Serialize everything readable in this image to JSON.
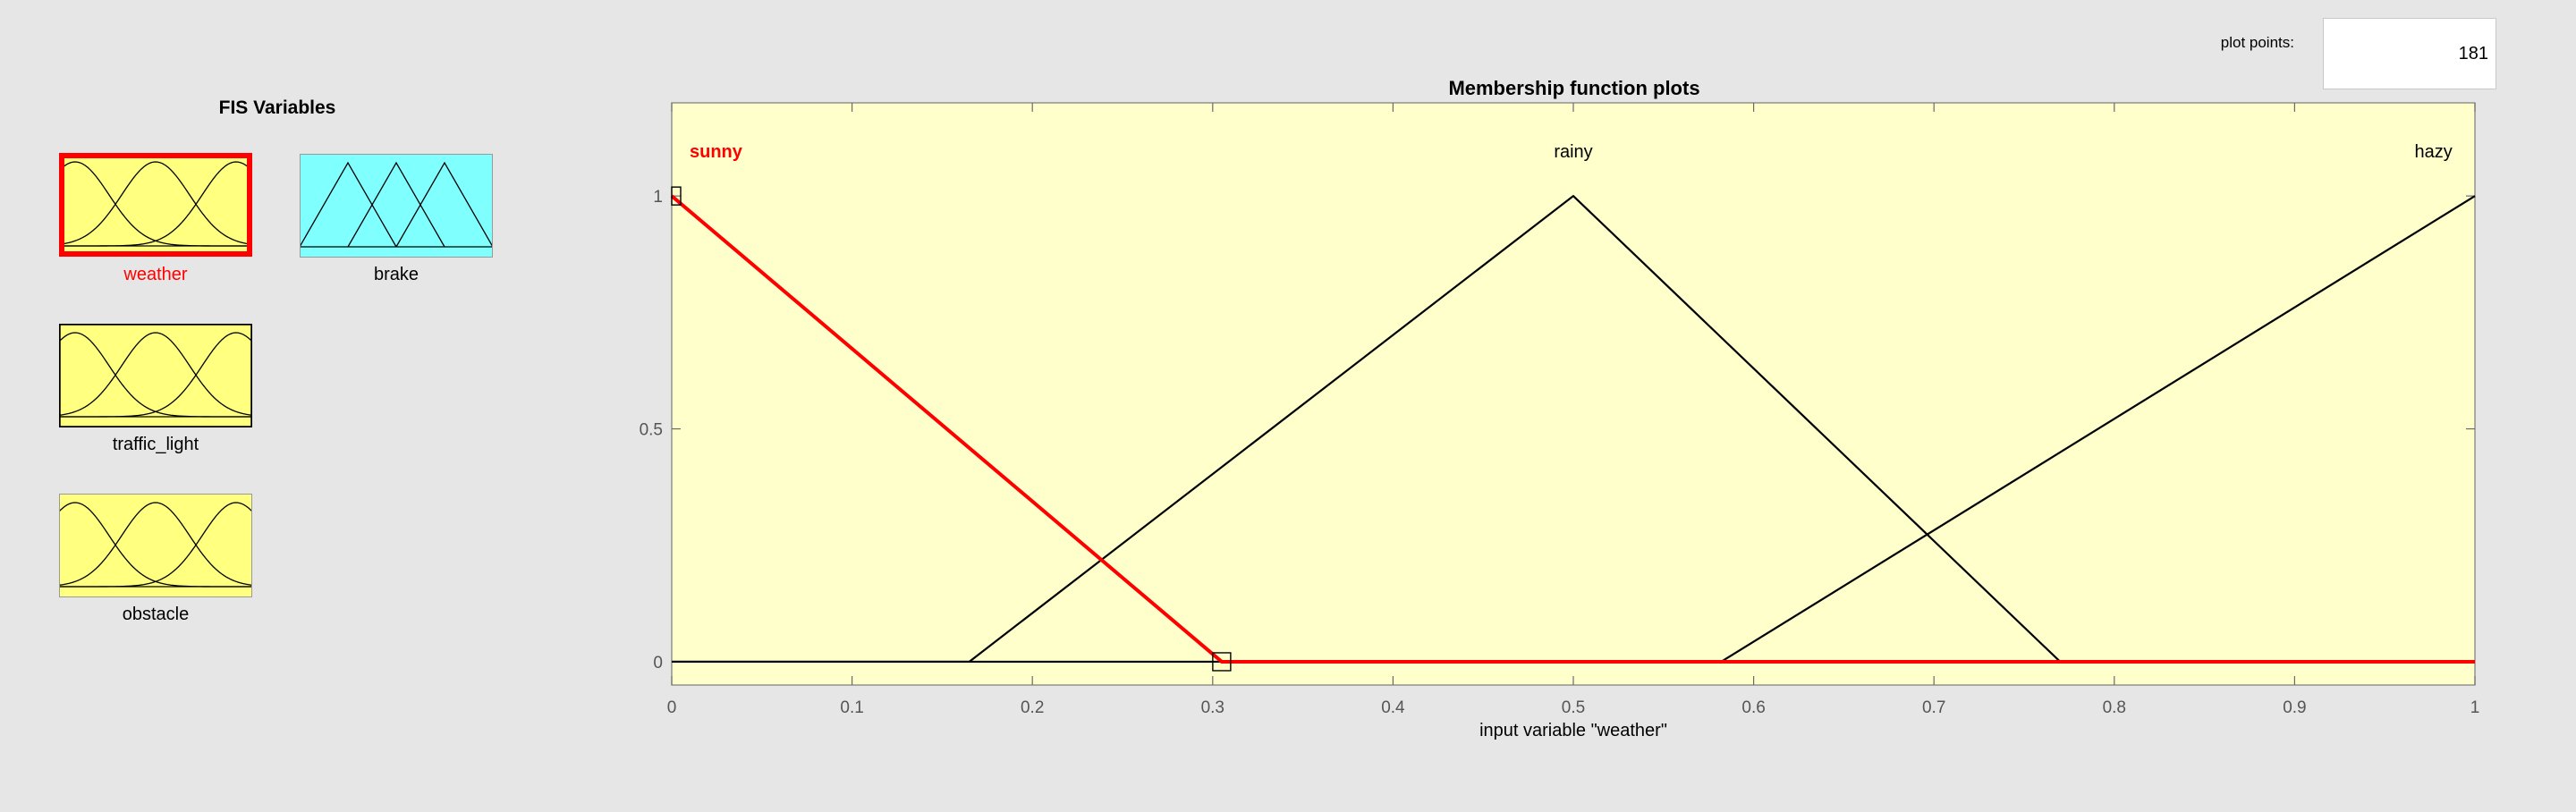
{
  "plot_points": {
    "label": "plot points:",
    "value": "181"
  },
  "fis": {
    "title": "FIS Variables",
    "variables": [
      {
        "name": "weather",
        "kind": "input",
        "selected": true
      },
      {
        "name": "brake",
        "kind": "output",
        "selected": false
      },
      {
        "name": "traffic_light",
        "kind": "input",
        "selected": false
      },
      {
        "name": "obstacle",
        "kind": "input",
        "selected": false
      }
    ]
  },
  "colors": {
    "window_bg": "#e6e6e6",
    "input_tile": "#ffff80",
    "output_tile": "#80ffff",
    "plot_bg": "#ffffcc",
    "selected": "#ff0000",
    "curve": "#000000"
  },
  "chart_data": {
    "type": "line",
    "title": "Membership function plots",
    "xlabel": "input variable \"weather\"",
    "ylabel": "",
    "xlim": [
      0,
      1
    ],
    "ylim": [
      -0.05,
      1.2
    ],
    "xticks": [
      0,
      0.1,
      0.2,
      0.3,
      0.4,
      0.5,
      0.6,
      0.7,
      0.8,
      0.9,
      1
    ],
    "yticks": [
      0,
      0.5,
      1
    ],
    "xtick_labels": [
      "0",
      "0.1",
      "0.2",
      "0.3",
      "0.4",
      "0.5",
      "0.6",
      "0.7",
      "0.8",
      "0.9",
      "1"
    ],
    "ytick_labels": [
      "0",
      "0.5",
      "1"
    ],
    "series": [
      {
        "name": "sunny",
        "selected": true,
        "label_x": 0.025,
        "points": [
          [
            0,
            1
          ],
          [
            0.305,
            0
          ],
          [
            1,
            0
          ]
        ]
      },
      {
        "name": "rainy",
        "selected": false,
        "label_x": 0.5,
        "points": [
          [
            0,
            0
          ],
          [
            0.165,
            0
          ],
          [
            0.5,
            1
          ],
          [
            0.77,
            0
          ],
          [
            1,
            0
          ]
        ]
      },
      {
        "name": "hazy",
        "selected": false,
        "label_x": 0.98,
        "points": [
          [
            0,
            0
          ],
          [
            0.582,
            0
          ],
          [
            1,
            1
          ]
        ]
      }
    ],
    "handles": [
      [
        0,
        1
      ],
      [
        0.305,
        0
      ]
    ]
  }
}
